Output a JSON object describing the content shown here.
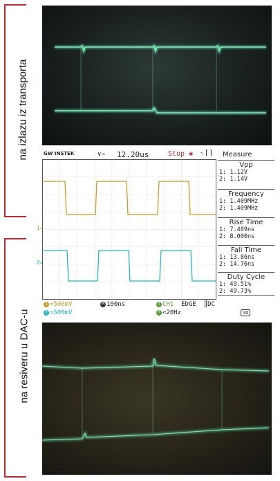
{
  "annotations": {
    "top": "na izlazu iz transporta",
    "bottom": "na resiveru u DAC-u"
  },
  "scope": {
    "brand": "GW INSTEK",
    "timebase_arrows": "∨→",
    "timebase": "12.20us",
    "status": "Stop",
    "ch1_marker": "1",
    "ch2_marker": "2",
    "measure": {
      "title": "Measure",
      "items": [
        {
          "label": "Vpp",
          "v1": "1: 1.12V",
          "v2": "2: 1.14V"
        },
        {
          "label": "Frequency",
          "v1": "1: 1.409MHz",
          "v2": "2: 1.409MHz"
        },
        {
          "label": "Rise Time",
          "v1": "1: 7.489ns",
          "v2": "2: 8.000ns"
        },
        {
          "label": "Fall Time",
          "v1": "1: 13.86ns",
          "v2": "2: 14.76ns"
        },
        {
          "label": "Duty Cycle",
          "v1": "1: 49.51%",
          "v2": "2: 49.73%"
        }
      ]
    },
    "bottom": {
      "ch1_scale": "500mV",
      "ch2_scale": "500mV",
      "horiz": "100ns",
      "trig_src": "CH1",
      "trig_type": "EDGE",
      "trig_coupling": "DC",
      "trig_freq": "<20Hz",
      "sd": "SD"
    },
    "colors": {
      "ch1": "#c89b22",
      "ch2": "#20b8c4"
    }
  }
}
